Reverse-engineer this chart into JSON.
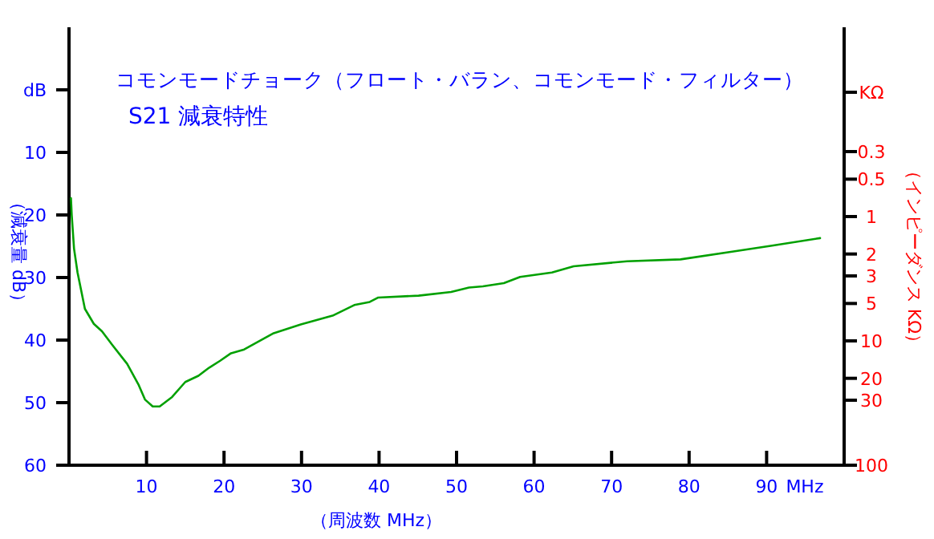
{
  "chart_data": {
    "type": "line",
    "title": "コモンモードチョーク（フロート・バラン、コモンモード・フィルター）",
    "subtitle": "S21 減衰特性",
    "xlabel": "（周波数 MHz）",
    "ylabel": "（減衰量 dB）",
    "y2label": "（インピーダンス KΩ）",
    "annotations": [
      "MHz"
    ],
    "x": [
      0.25,
      0.35,
      0.65,
      1.1,
      2.05,
      3.2,
      4.25,
      5.6,
      7.5,
      9.0,
      9.8,
      10.8,
      11.7,
      13.3,
      15.0,
      16.7,
      18.1,
      19.5,
      20.9,
      22.6,
      26.4,
      29.9,
      34.0,
      36.8,
      38.8,
      39.9,
      45.1,
      49.3,
      51.6,
      53.4,
      56.1,
      58.2,
      62.3,
      65.1,
      72.0,
      78.9,
      85.9,
      90.7,
      96.9
    ],
    "series": [
      {
        "color": "#00a000",
        "values": [
          17.3,
          20,
          25.4,
          29.2,
          35,
          37.4,
          38.6,
          40.8,
          43.8,
          47.2,
          49.5,
          50.6,
          50.6,
          49.1,
          46.7,
          45.7,
          44.4,
          43.3,
          42.1,
          41.5,
          38.9,
          37.5,
          36.1,
          34.4,
          33.9,
          33.2,
          32.9,
          32.3,
          31.6,
          31.4,
          30.9,
          29.9,
          29.2,
          28.2,
          27.4,
          27.1,
          25.8,
          24.9,
          23.7
        ]
      }
    ],
    "xlim": [
      0,
      100
    ],
    "xticks": [
      10,
      20,
      30,
      40,
      50,
      60,
      70,
      80,
      90
    ],
    "ylim": [
      60,
      -10
    ],
    "yticks": [
      {
        "value": 0,
        "label": "dB"
      },
      10,
      20,
      30,
      40,
      50,
      60
    ],
    "log": "y2",
    "y2lim": [
      100,
      0.03
    ],
    "y2ticks": [
      {
        "value": 0.1,
        "label": "KΩ"
      },
      0.3,
      0.5,
      1,
      2,
      3,
      5,
      10,
      20,
      30,
      100
    ]
  }
}
